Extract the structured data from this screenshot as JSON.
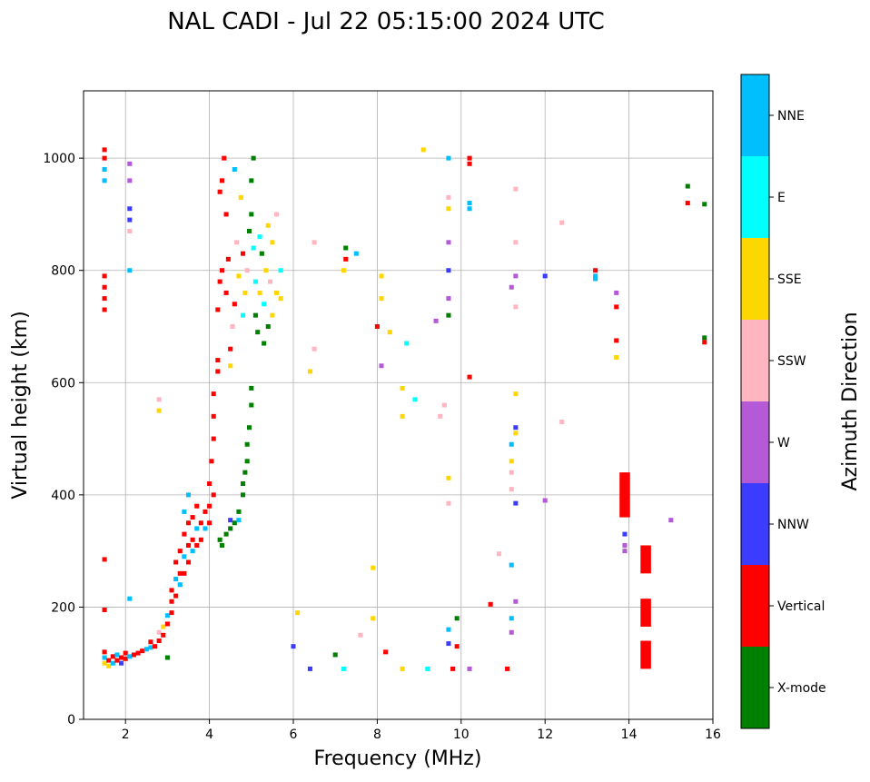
{
  "chart_data": {
    "type": "scatter",
    "title": "NAL CADI - Jul 22 05:15:00 2024 UTC",
    "xlabel": "Frequency (MHz)",
    "ylabel": "Virtual height (km)",
    "xlim": [
      1,
      16
    ],
    "ylim": [
      0,
      1120
    ],
    "xticks": [
      2,
      4,
      6,
      8,
      10,
      12,
      14,
      16
    ],
    "yticks": [
      0,
      200,
      400,
      600,
      800,
      1000
    ],
    "grid": true,
    "colorbar": {
      "label": "Azimuth Direction",
      "categories": [
        {
          "name": "X-mode",
          "color": "#008000"
        },
        {
          "name": "Vertical",
          "color": "#ff0000"
        },
        {
          "name": "NNW",
          "color": "#3c3cff"
        },
        {
          "name": "W",
          "color": "#b55ad6"
        },
        {
          "name": "SSW",
          "color": "#ffb6c1"
        },
        {
          "name": "SSE",
          "color": "#ffd700"
        },
        {
          "name": "E",
          "color": "#00ffff"
        },
        {
          "name": "NNE",
          "color": "#00bfff"
        }
      ]
    },
    "point_format": [
      "freq_MHz",
      "height_km",
      "direction_index"
    ],
    "points": [
      [
        1.5,
        100,
        5
      ],
      [
        1.5,
        110,
        7
      ],
      [
        1.5,
        120,
        1
      ],
      [
        1.6,
        95,
        5
      ],
      [
        1.6,
        105,
        1
      ],
      [
        1.7,
        100,
        7
      ],
      [
        1.7,
        112,
        1
      ],
      [
        1.8,
        105,
        1
      ],
      [
        1.8,
        115,
        7
      ],
      [
        1.9,
        100,
        2
      ],
      [
        1.9,
        110,
        1
      ],
      [
        2.0,
        108,
        1
      ],
      [
        2.0,
        118,
        1
      ],
      [
        2.1,
        112,
        7
      ],
      [
        2.2,
        115,
        1
      ],
      [
        2.3,
        118,
        1
      ],
      [
        2.4,
        122,
        1
      ],
      [
        2.5,
        125,
        7
      ],
      [
        2.6,
        128,
        7
      ],
      [
        2.6,
        138,
        1
      ],
      [
        2.7,
        130,
        1
      ],
      [
        2.8,
        140,
        1
      ],
      [
        2.8,
        155,
        4
      ],
      [
        2.9,
        150,
        1
      ],
      [
        2.9,
        165,
        5
      ],
      [
        3.0,
        170,
        1
      ],
      [
        3.0,
        185,
        7
      ],
      [
        3.0,
        110,
        0
      ],
      [
        3.1,
        190,
        1
      ],
      [
        3.1,
        210,
        1
      ],
      [
        3.1,
        230,
        1
      ],
      [
        3.2,
        220,
        1
      ],
      [
        3.2,
        250,
        7
      ],
      [
        3.2,
        280,
        1
      ],
      [
        3.3,
        240,
        7
      ],
      [
        3.3,
        260,
        1
      ],
      [
        3.3,
        300,
        1
      ],
      [
        3.4,
        260,
        1
      ],
      [
        3.4,
        290,
        7
      ],
      [
        3.4,
        330,
        1
      ],
      [
        3.4,
        370,
        7
      ],
      [
        3.5,
        280,
        1
      ],
      [
        3.5,
        310,
        1
      ],
      [
        3.5,
        350,
        1
      ],
      [
        3.5,
        400,
        7
      ],
      [
        3.6,
        300,
        7
      ],
      [
        3.6,
        320,
        1
      ],
      [
        3.6,
        360,
        1
      ],
      [
        3.7,
        310,
        1
      ],
      [
        3.7,
        340,
        7
      ],
      [
        3.7,
        380,
        1
      ],
      [
        3.8,
        320,
        1
      ],
      [
        3.8,
        350,
        1
      ],
      [
        3.9,
        340,
        7
      ],
      [
        3.9,
        370,
        1
      ],
      [
        4.0,
        350,
        1
      ],
      [
        4.0,
        380,
        1
      ],
      [
        4.0,
        420,
        1
      ],
      [
        4.05,
        460,
        1
      ],
      [
        4.1,
        400,
        1
      ],
      [
        4.1,
        500,
        1
      ],
      [
        4.1,
        540,
        1
      ],
      [
        4.1,
        580,
        1
      ],
      [
        4.2,
        620,
        1
      ],
      [
        4.2,
        640,
        1
      ],
      [
        4.25,
        320,
        0
      ],
      [
        4.3,
        310,
        0
      ],
      [
        4.4,
        330,
        0
      ],
      [
        4.5,
        340,
        0
      ],
      [
        4.6,
        350,
        0
      ],
      [
        4.7,
        370,
        0
      ],
      [
        4.8,
        400,
        0
      ],
      [
        4.8,
        420,
        0
      ],
      [
        4.85,
        440,
        0
      ],
      [
        4.9,
        460,
        0
      ],
      [
        4.9,
        490,
        0
      ],
      [
        4.95,
        520,
        0
      ],
      [
        5.0,
        560,
        0
      ],
      [
        5.0,
        590,
        0
      ],
      [
        4.5,
        355,
        2
      ],
      [
        4.7,
        355,
        7
      ],
      [
        4.2,
        730,
        1
      ],
      [
        4.25,
        780,
        1
      ],
      [
        4.3,
        800,
        1
      ],
      [
        4.3,
        960,
        1
      ],
      [
        4.25,
        940,
        1
      ],
      [
        4.35,
        1000,
        1
      ],
      [
        4.4,
        760,
        1
      ],
      [
        4.4,
        900,
        1
      ],
      [
        4.45,
        820,
        1
      ],
      [
        4.5,
        660,
        1
      ],
      [
        4.5,
        630,
        5
      ],
      [
        4.55,
        700,
        4
      ],
      [
        4.6,
        740,
        1
      ],
      [
        4.6,
        980,
        7
      ],
      [
        4.65,
        850,
        4
      ],
      [
        4.7,
        790,
        5
      ],
      [
        4.75,
        930,
        5
      ],
      [
        4.8,
        720,
        6
      ],
      [
        4.8,
        830,
        1
      ],
      [
        4.85,
        760,
        5
      ],
      [
        4.9,
        800,
        4
      ],
      [
        4.95,
        870,
        0
      ],
      [
        5.0,
        900,
        0
      ],
      [
        5.0,
        960,
        0
      ],
      [
        5.05,
        1000,
        0
      ],
      [
        5.05,
        840,
        6
      ],
      [
        5.1,
        780,
        6
      ],
      [
        5.1,
        720,
        0
      ],
      [
        5.15,
        690,
        0
      ],
      [
        5.2,
        860,
        6
      ],
      [
        5.2,
        760,
        5
      ],
      [
        5.25,
        830,
        0
      ],
      [
        5.3,
        670,
        0
      ],
      [
        5.3,
        740,
        6
      ],
      [
        5.35,
        800,
        5
      ],
      [
        5.4,
        880,
        5
      ],
      [
        5.4,
        700,
        0
      ],
      [
        5.45,
        780,
        4
      ],
      [
        5.5,
        850,
        5
      ],
      [
        5.5,
        720,
        5
      ],
      [
        5.6,
        760,
        5
      ],
      [
        5.6,
        900,
        4
      ],
      [
        5.7,
        750,
        5
      ],
      [
        5.7,
        800,
        6
      ],
      [
        1.5,
        730,
        1
      ],
      [
        1.5,
        750,
        1
      ],
      [
        1.5,
        770,
        1
      ],
      [
        1.5,
        790,
        1
      ],
      [
        1.5,
        960,
        7
      ],
      [
        1.5,
        980,
        7
      ],
      [
        1.5,
        1000,
        1
      ],
      [
        1.5,
        1015,
        1
      ],
      [
        1.5,
        285,
        1
      ],
      [
        1.5,
        195,
        1
      ],
      [
        2.1,
        800,
        7
      ],
      [
        2.1,
        870,
        4
      ],
      [
        2.1,
        890,
        2
      ],
      [
        2.1,
        910,
        2
      ],
      [
        2.1,
        960,
        3
      ],
      [
        2.1,
        990,
        3
      ],
      [
        2.1,
        215,
        7
      ],
      [
        2.8,
        550,
        5
      ],
      [
        2.8,
        570,
        4
      ],
      [
        6.0,
        130,
        2
      ],
      [
        6.1,
        190,
        5
      ],
      [
        6.4,
        90,
        2
      ],
      [
        6.4,
        620,
        5
      ],
      [
        6.5,
        850,
        4
      ],
      [
        6.5,
        660,
        4
      ],
      [
        7.0,
        115,
        0
      ],
      [
        7.2,
        90,
        6
      ],
      [
        7.2,
        800,
        5
      ],
      [
        7.25,
        840,
        0
      ],
      [
        7.25,
        820,
        1
      ],
      [
        7.5,
        830,
        7
      ],
      [
        7.6,
        150,
        4
      ],
      [
        7.9,
        180,
        5
      ],
      [
        7.9,
        270,
        5
      ],
      [
        8.0,
        700,
        1
      ],
      [
        8.1,
        750,
        5
      ],
      [
        8.1,
        790,
        5
      ],
      [
        8.1,
        630,
        3
      ],
      [
        8.2,
        120,
        1
      ],
      [
        8.3,
        690,
        5
      ],
      [
        8.6,
        90,
        5
      ],
      [
        8.6,
        540,
        5
      ],
      [
        8.6,
        590,
        5
      ],
      [
        8.7,
        670,
        6
      ],
      [
        8.9,
        570,
        6
      ],
      [
        9.1,
        1015,
        5
      ],
      [
        9.2,
        90,
        6
      ],
      [
        9.4,
        710,
        3
      ],
      [
        9.5,
        540,
        4
      ],
      [
        9.6,
        560,
        4
      ],
      [
        9.7,
        1000,
        7
      ],
      [
        9.7,
        930,
        4
      ],
      [
        9.7,
        910,
        5
      ],
      [
        9.7,
        850,
        3
      ],
      [
        9.7,
        800,
        2
      ],
      [
        9.7,
        750,
        3
      ],
      [
        9.7,
        720,
        0
      ],
      [
        9.7,
        430,
        5
      ],
      [
        9.7,
        385,
        4
      ],
      [
        9.7,
        160,
        7
      ],
      [
        9.7,
        135,
        2
      ],
      [
        9.8,
        90,
        1
      ],
      [
        9.9,
        180,
        0
      ],
      [
        9.9,
        130,
        1
      ],
      [
        10.2,
        1000,
        1
      ],
      [
        10.2,
        990,
        1
      ],
      [
        10.2,
        920,
        7
      ],
      [
        10.2,
        910,
        7
      ],
      [
        10.2,
        610,
        1
      ],
      [
        10.2,
        90,
        3
      ],
      [
        10.7,
        205,
        1
      ],
      [
        10.9,
        295,
        4
      ],
      [
        11.1,
        90,
        1
      ],
      [
        11.2,
        770,
        3
      ],
      [
        11.2,
        490,
        7
      ],
      [
        11.2,
        460,
        5
      ],
      [
        11.2,
        440,
        4
      ],
      [
        11.2,
        410,
        4
      ],
      [
        11.2,
        275,
        7
      ],
      [
        11.2,
        180,
        7
      ],
      [
        11.2,
        155,
        3
      ],
      [
        11.3,
        945,
        4
      ],
      [
        11.3,
        850,
        4
      ],
      [
        11.3,
        790,
        3
      ],
      [
        11.3,
        735,
        4
      ],
      [
        11.3,
        580,
        5
      ],
      [
        11.3,
        520,
        2
      ],
      [
        11.3,
        510,
        5
      ],
      [
        11.3,
        385,
        2
      ],
      [
        11.3,
        210,
        3
      ],
      [
        12.0,
        790,
        2
      ],
      [
        12.0,
        390,
        3
      ],
      [
        12.4,
        885,
        4
      ],
      [
        12.4,
        530,
        4
      ],
      [
        13.2,
        800,
        1
      ],
      [
        13.2,
        790,
        7
      ],
      [
        13.2,
        785,
        7
      ],
      [
        13.7,
        760,
        3
      ],
      [
        13.7,
        735,
        1
      ],
      [
        13.7,
        675,
        1
      ],
      [
        13.7,
        645,
        5
      ],
      [
        13.9,
        330,
        2
      ],
      [
        13.9,
        310,
        3
      ],
      [
        13.9,
        300,
        3
      ],
      [
        15.0,
        355,
        3
      ],
      [
        15.4,
        950,
        0
      ],
      [
        15.4,
        920,
        1
      ],
      [
        15.8,
        918,
        0
      ],
      [
        15.8,
        680,
        0
      ],
      [
        15.8,
        672,
        1
      ]
    ],
    "segment_format": [
      "freq_MHz",
      "height_min_km",
      "height_max_km",
      "direction_index"
    ],
    "segments": [
      [
        14.4,
        90,
        140,
        1
      ],
      [
        14.4,
        165,
        215,
        1
      ],
      [
        14.4,
        260,
        310,
        1
      ],
      [
        13.9,
        360,
        440,
        1
      ]
    ]
  }
}
